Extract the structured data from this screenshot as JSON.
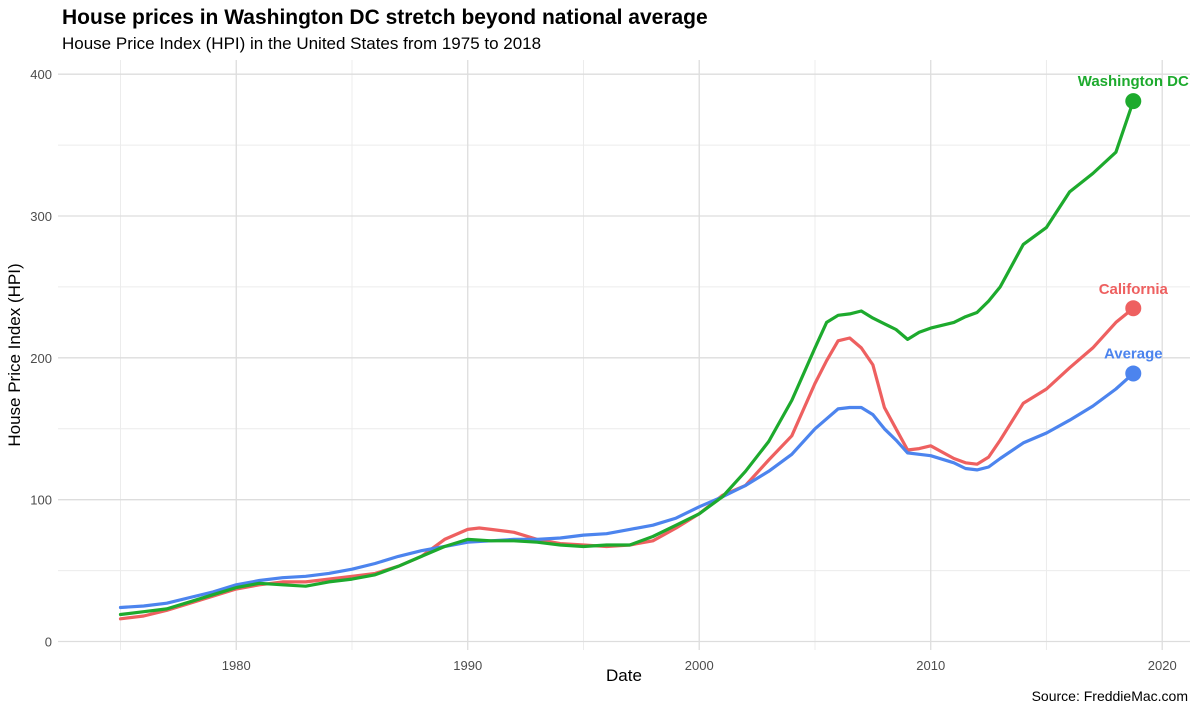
{
  "title": "House prices in Washington DC stretch beyond national average",
  "subtitle": "House Price Index (HPI) in the United States from 1975 to 2018",
  "caption": "Source: FreddieMac.com",
  "chart_data": {
    "type": "line",
    "title": "House prices in Washington DC stretch beyond national average",
    "subtitle": "House Price Index (HPI) in the United States from 1975 to 2018",
    "xlabel": "Date",
    "ylabel": "House Price Index (HPI)",
    "xlim": [
      1972.3,
      2021.2
    ],
    "ylim": [
      -6,
      410
    ],
    "x_ticks": [
      1980,
      1990,
      2000,
      2010,
      2020
    ],
    "y_ticks": [
      0,
      100,
      200,
      300,
      400
    ],
    "grid": true,
    "legend": "direct labels at line ends",
    "series": [
      {
        "name": "California",
        "color": "#EE6060",
        "x": [
          1975,
          1976,
          1977,
          1978,
          1979,
          1980,
          1981,
          1982,
          1983,
          1984,
          1985,
          1986,
          1987,
          1988,
          1989,
          1990,
          1990.5,
          1991,
          1992,
          1993,
          1994,
          1995,
          1996,
          1997,
          1998,
          1999,
          2000,
          2001,
          2002,
          2003,
          2004,
          2005,
          2005.5,
          2006,
          2006.5,
          2007,
          2007.5,
          2008,
          2008.5,
          2009,
          2009.5,
          2010,
          2011,
          2011.5,
          2012,
          2012.5,
          2013,
          2014,
          2015,
          2016,
          2017,
          2018,
          2018.75
        ],
        "values": [
          16,
          18,
          22,
          27,
          32,
          37,
          40,
          42,
          42,
          44,
          46,
          48,
          53,
          60,
          72,
          79,
          80,
          79,
          77,
          72,
          69,
          68,
          67,
          68,
          71,
          80,
          90,
          103,
          110,
          128,
          145,
          182,
          198,
          212,
          214,
          207,
          195,
          165,
          150,
          135,
          136,
          138,
          129,
          126,
          125,
          130,
          142,
          168,
          178,
          193,
          207,
          225,
          235
        ]
      },
      {
        "name": "Average",
        "color": "#4C84EE",
        "x": [
          1975,
          1976,
          1977,
          1978,
          1979,
          1980,
          1981,
          1982,
          1983,
          1984,
          1985,
          1986,
          1987,
          1988,
          1989,
          1990,
          1991,
          1992,
          1993,
          1994,
          1995,
          1996,
          1997,
          1998,
          1999,
          2000,
          2001,
          2002,
          2003,
          2004,
          2005,
          2005.5,
          2006,
          2006.5,
          2007,
          2007.5,
          2008,
          2008.5,
          2009,
          2009.5,
          2010,
          2011,
          2011.5,
          2012,
          2012.5,
          2013,
          2014,
          2015,
          2016,
          2017,
          2018,
          2018.75
        ],
        "values": [
          24,
          25,
          27,
          31,
          35,
          40,
          43,
          45,
          46,
          48,
          51,
          55,
          60,
          64,
          67,
          70,
          71,
          72,
          72,
          73,
          75,
          76,
          79,
          82,
          87,
          95,
          102,
          110,
          120,
          132,
          150,
          157,
          164,
          165,
          165,
          160,
          150,
          142,
          133,
          132,
          131,
          126,
          122,
          121,
          123,
          129,
          140,
          147,
          156,
          166,
          178,
          189
        ]
      },
      {
        "name": "Washington DC",
        "color": "#1DAA2D",
        "x": [
          1975,
          1976,
          1977,
          1978,
          1979,
          1980,
          1981,
          1982,
          1983,
          1984,
          1985,
          1986,
          1987,
          1988,
          1989,
          1990,
          1991,
          1992,
          1993,
          1994,
          1995,
          1996,
          1997,
          1998,
          1999,
          2000,
          2001,
          2002,
          2003,
          2004,
          2005,
          2005.5,
          2006,
          2006.5,
          2007,
          2007.5,
          2008,
          2008.5,
          2009,
          2009.5,
          2010,
          2011,
          2011.5,
          2012,
          2012.5,
          2013,
          2014,
          2015,
          2016,
          2017,
          2018,
          2018.75
        ],
        "values": [
          19,
          21,
          23,
          28,
          33,
          38,
          41,
          40,
          39,
          42,
          44,
          47,
          53,
          60,
          67,
          72,
          71,
          71,
          70,
          68,
          67,
          68,
          68,
          74,
          82,
          90,
          102,
          120,
          141,
          170,
          207,
          225,
          230,
          231,
          233,
          228,
          224,
          220,
          213,
          218,
          221,
          225,
          229,
          232,
          240,
          250,
          280,
          292,
          317,
          330,
          345,
          381
        ]
      }
    ],
    "end_labels": [
      "Washington DC",
      "California",
      "Average"
    ]
  }
}
